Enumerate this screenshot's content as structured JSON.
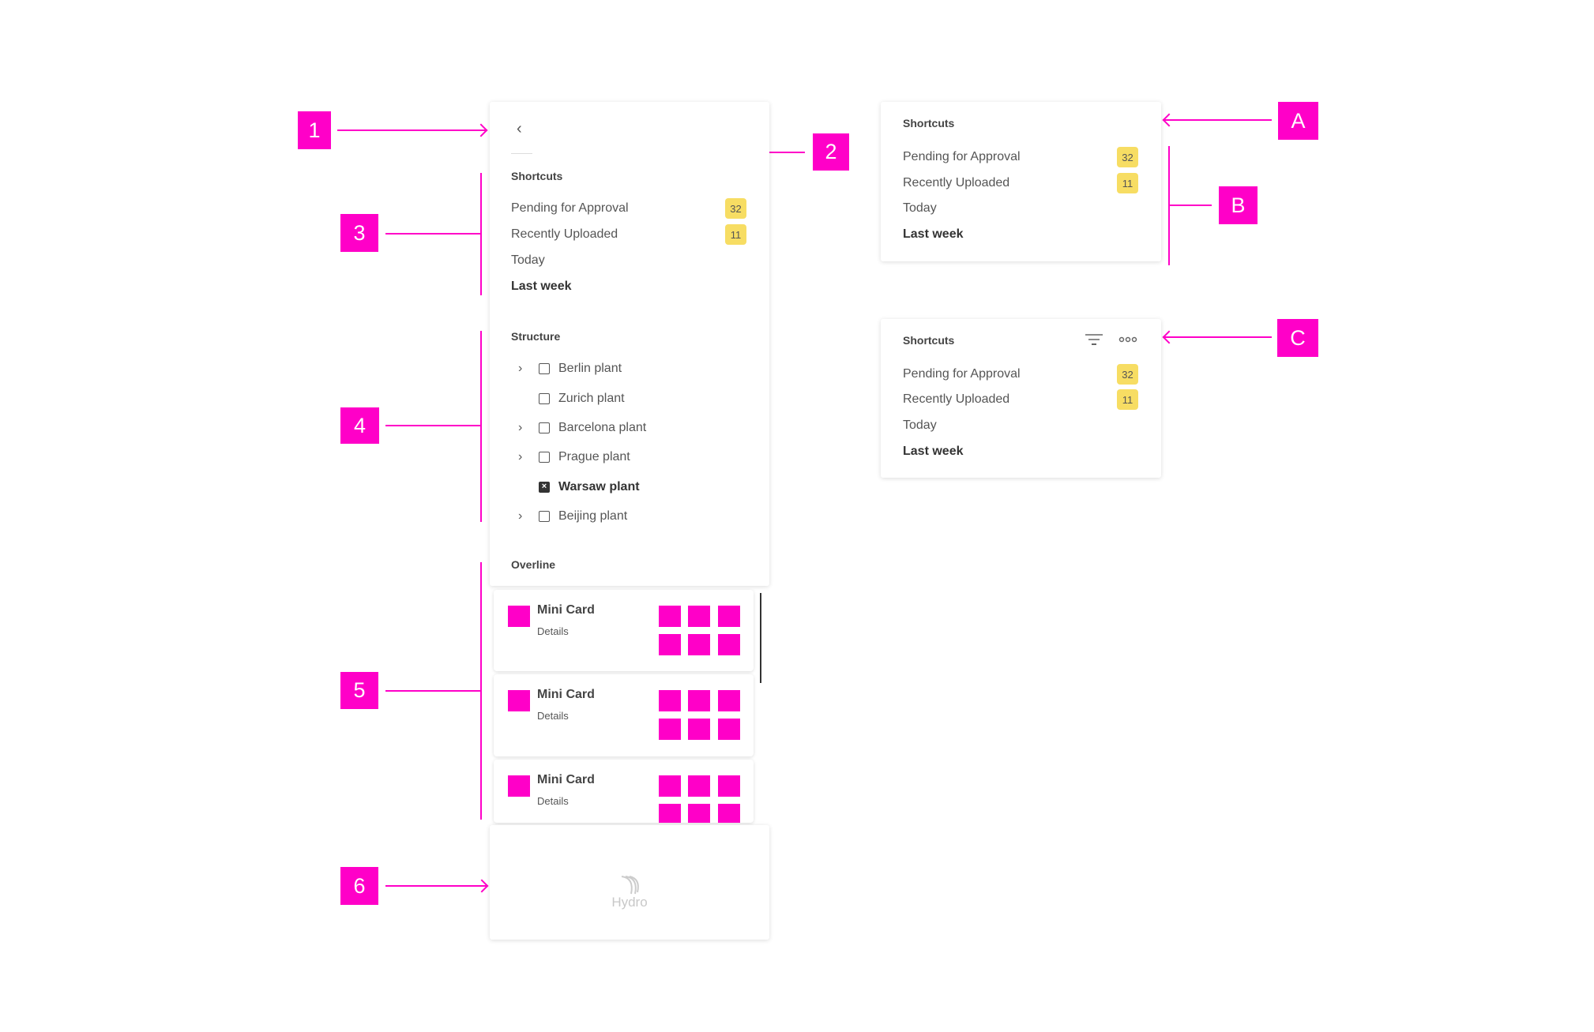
{
  "callouts": {
    "n1": "1",
    "n2": "2",
    "n3": "3",
    "n4": "4",
    "n5": "5",
    "n6": "6",
    "a": "A",
    "b": "B",
    "c": "C"
  },
  "accent_color": "#ff00c8",
  "badge_color": "#f7dd63",
  "sidebar": {
    "back_icon": "chevron-left-icon",
    "shortcuts": {
      "heading": "Shortcuts",
      "items": [
        {
          "label": "Pending for Approval",
          "count": "32"
        },
        {
          "label": "Recently Uploaded",
          "count": "11"
        },
        {
          "label": "Today"
        },
        {
          "label": "Last week",
          "selected": true
        }
      ]
    },
    "structure": {
      "heading": "Structure",
      "items": [
        {
          "label": "Berlin plant",
          "expandable": true,
          "checked": false
        },
        {
          "label": "Zurich plant",
          "expandable": false,
          "checked": false
        },
        {
          "label": "Barcelona plant",
          "expandable": true,
          "checked": false
        },
        {
          "label": "Prague plant",
          "expandable": true,
          "checked": false
        },
        {
          "label": "Warsaw plant",
          "expandable": false,
          "checked": true
        },
        {
          "label": "Beijing plant",
          "expandable": true,
          "checked": false
        }
      ]
    },
    "overline": {
      "heading": "Overline",
      "cards": [
        {
          "title": "Mini Card",
          "details": "Details"
        },
        {
          "title": "Mini Card",
          "details": "Details"
        },
        {
          "title": "Mini Card",
          "details": "Details"
        }
      ]
    },
    "footer": {
      "logo_text": "Hydro"
    }
  },
  "panel_a": {
    "heading": "Shortcuts",
    "items": [
      {
        "label": "Pending for Approval",
        "count": "32"
      },
      {
        "label": "Recently Uploaded",
        "count": "11"
      },
      {
        "label": "Today"
      },
      {
        "label": "Last week",
        "selected": true
      }
    ]
  },
  "panel_c": {
    "heading": "Shortcuts",
    "icons": [
      "filter-icon",
      "more-icon"
    ],
    "items": [
      {
        "label": "Pending for Approval",
        "count": "32"
      },
      {
        "label": "Recently Uploaded",
        "count": "11"
      },
      {
        "label": "Today"
      },
      {
        "label": "Last week",
        "selected": true
      }
    ]
  }
}
